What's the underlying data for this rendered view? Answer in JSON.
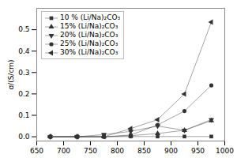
{
  "chart_data": {
    "type": "line",
    "x": [
      675,
      725,
      775,
      825,
      875,
      925,
      975
    ],
    "series": [
      {
        "name": "10 % (Li/Na)₂CO₃",
        "marker": "square",
        "values": [
          0.0,
          0.0,
          0.0,
          0.001,
          0.001,
          0.001,
          0.001
        ]
      },
      {
        "name": "15% (Li/Na)₂CO₃",
        "marker": "triangle-up",
        "values": [
          0.0,
          0.0,
          0.0,
          0.005,
          0.015,
          0.03,
          0.075
        ]
      },
      {
        "name": "20% (Li/Na)₂CO₃",
        "marker": "triangle-down",
        "values": [
          0.0,
          0.0,
          0.01,
          0.025,
          0.05,
          0.03,
          0.08
        ]
      },
      {
        "name": "25% (Li/Na)₂CO₃",
        "marker": "circle",
        "values": [
          0.0,
          0.0,
          0.0,
          0.008,
          0.055,
          0.12,
          0.24
        ]
      },
      {
        "name": "30% (Li/Na)₂CO₃",
        "marker": "triangle-left",
        "values": [
          0.0,
          0.0,
          0.0,
          0.038,
          0.08,
          0.2,
          0.535
        ]
      }
    ],
    "y_label": "σ/(S/cm)",
    "xlim": [
      650,
      1000
    ],
    "ylim": [
      -0.02,
      0.6
    ],
    "xticks": [
      650,
      700,
      750,
      800,
      850,
      900,
      950,
      1000
    ],
    "yticks": [
      {
        "value": 0,
        "label": "0.0"
      },
      0.1,
      0.2,
      0.3,
      0.4,
      0.5
    ],
    "color": "#333333",
    "legend": "upper left",
    "grid": false
  }
}
